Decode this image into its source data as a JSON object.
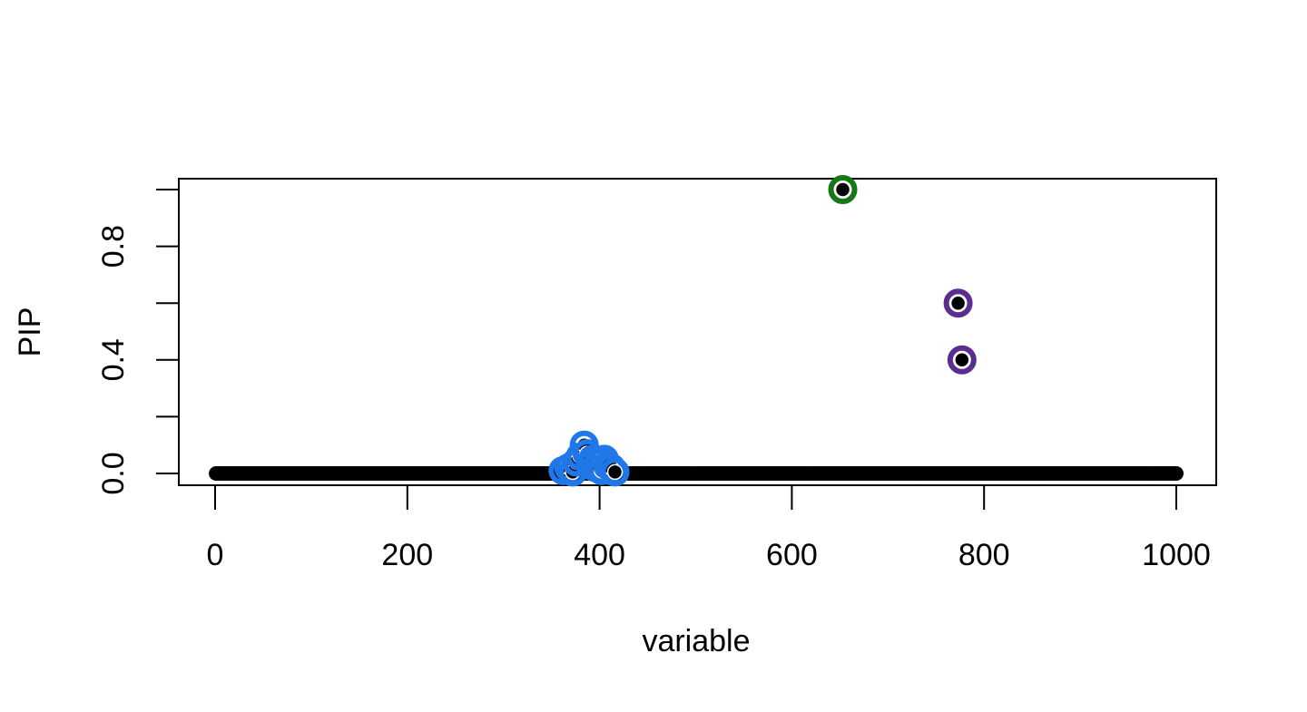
{
  "chart_data": {
    "type": "scatter",
    "title": "",
    "xlabel": "variable",
    "ylabel": "PIP",
    "xlim": [
      0,
      1000
    ],
    "ylim": [
      0,
      1
    ],
    "x_ticks": [
      0,
      200,
      400,
      600,
      800,
      1000
    ],
    "x_tick_labels": [
      "0",
      "200",
      "400",
      "600",
      "800",
      "1000"
    ],
    "y_ticks": [
      0,
      0.2,
      0.4,
      0.6,
      0.8,
      1.0
    ],
    "y_tick_labels": [
      "0.0",
      "",
      "0.4",
      "",
      "0.8",
      ""
    ],
    "grid": false,
    "legend": "none",
    "baseline": {
      "description": "all variables 1..1000 with PIP approximately 0",
      "x_range": [
        1,
        1000
      ],
      "y": 0,
      "color": "#000000"
    },
    "series": [
      {
        "color": "#1F77E8",
        "points": [
          {
            "x": 362,
            "y": 0.01
          },
          {
            "x": 368,
            "y": 0.02
          },
          {
            "x": 372,
            "y": 0.005
          },
          {
            "x": 376,
            "y": 0.04
          },
          {
            "x": 380,
            "y": 0.06
          },
          {
            "x": 384,
            "y": 0.1
          },
          {
            "x": 387,
            "y": 0.07
          },
          {
            "x": 390,
            "y": 0.03
          },
          {
            "x": 393,
            "y": 0.05
          },
          {
            "x": 396,
            "y": 0.02
          },
          {
            "x": 399,
            "y": 0.04
          },
          {
            "x": 402,
            "y": 0.01
          },
          {
            "x": 405,
            "y": 0.05
          },
          {
            "x": 408,
            "y": 0.03
          },
          {
            "x": 412,
            "y": 0.02
          },
          {
            "x": 416,
            "y": 0.005
          }
        ]
      },
      {
        "color": "#147814",
        "points": [
          {
            "x": 653,
            "y": 1.0
          }
        ]
      },
      {
        "color": "#5C2D91",
        "points": [
          {
            "x": 773,
            "y": 0.6
          },
          {
            "x": 777,
            "y": 0.4
          }
        ]
      }
    ]
  }
}
